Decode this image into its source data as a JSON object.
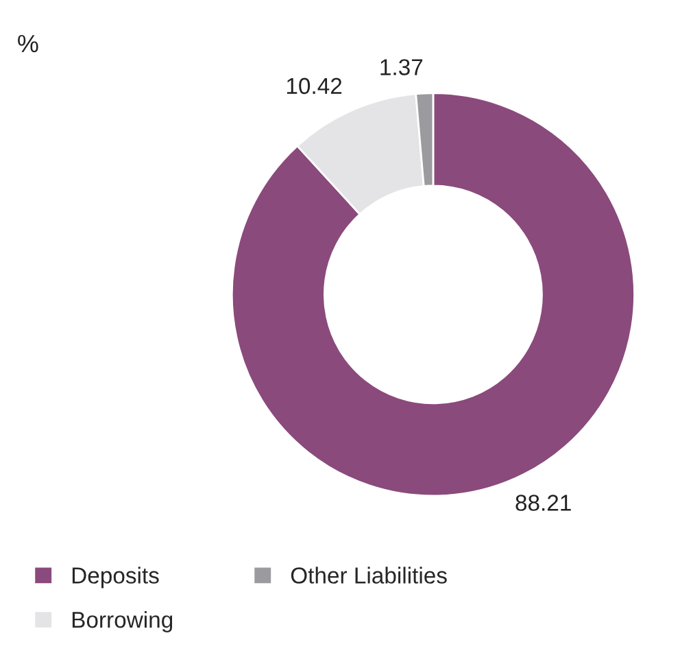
{
  "chart_data": {
    "type": "donut",
    "subtitle": "%",
    "categories": [
      "Deposits",
      "Borrowing",
      "Other Liabilities"
    ],
    "values": [
      88.21,
      10.42,
      1.37
    ],
    "colors": [
      "#8a4a7c",
      "#e4e4e7",
      "#9b9b9f"
    ],
    "data_labels": true,
    "legend": "bottom left"
  }
}
